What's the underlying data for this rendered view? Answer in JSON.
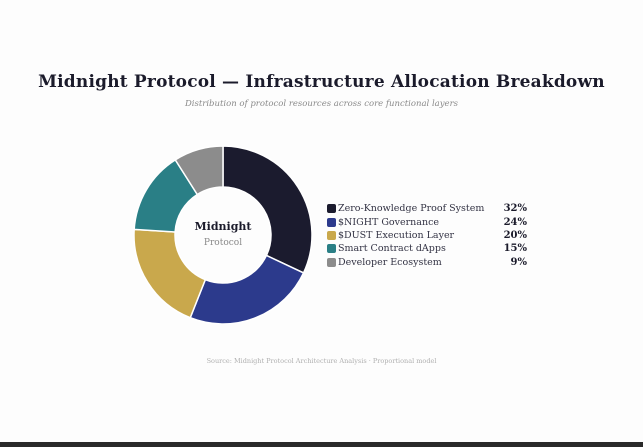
{
  "chart_data": {
    "type": "pie",
    "title": "Midnight Protocol — Infrastructure Allocation Breakdown",
    "subtitle": "Distribution of protocol resources across core functional layers",
    "center_title": "Midnight",
    "center_subtitle": "Protocol",
    "source": "Source: Midnight Protocol Architecture Analysis · Proportional model",
    "legend_position": "right",
    "slices": [
      {
        "label": "Zero-Knowledge Proof System",
        "value": 32,
        "value_label": "32%",
        "color": "#1b1b2e"
      },
      {
        "label": "$NIGHT Governance",
        "value": 24,
        "value_label": "24%",
        "color": "#2c3a8c"
      },
      {
        "label": "$DUST Execution Layer",
        "value": 20,
        "value_label": "20%",
        "color": "#c9a84c"
      },
      {
        "label": "Smart Contract dApps",
        "value": 15,
        "value_label": "15%",
        "color": "#2a7f86"
      },
      {
        "label": "Developer Ecosystem",
        "value": 9,
        "value_label": "9%",
        "color": "#8c8c8c"
      }
    ]
  }
}
